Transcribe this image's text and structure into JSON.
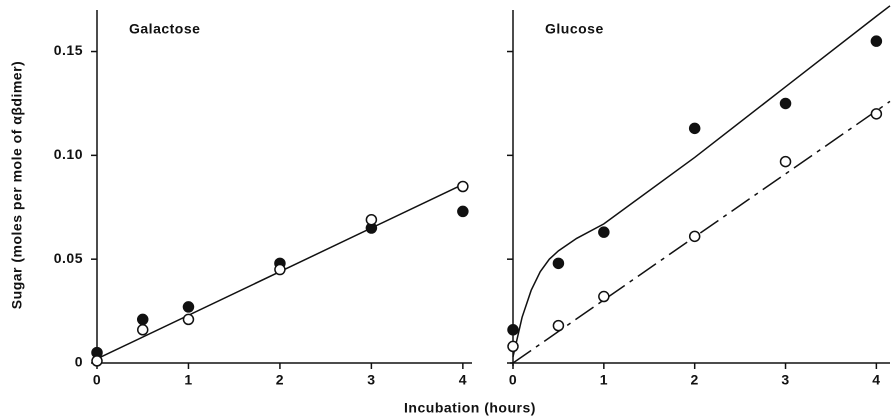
{
  "chart_data": [
    {
      "type": "scatter",
      "title": "Galactose",
      "ylabel": "Sugar (moles per mole of  αβdimer)",
      "xlabel": "Incubation (hours)",
      "xlim": [
        0,
        4.1
      ],
      "ylim": [
        0,
        0.17
      ],
      "xticks": [
        0,
        1,
        2,
        3,
        4
      ],
      "yticks": [
        0,
        0.05,
        {
          "value": 0.1,
          "label": "0.10"
        },
        0.15
      ],
      "ytick_labels": true,
      "series": [
        {
          "marker": "filled",
          "color": "#111111",
          "x": [
            0,
            0.5,
            1,
            2,
            3,
            4
          ],
          "values": [
            0.005,
            0.021,
            0.027,
            0.048,
            0.065,
            0.073
          ]
        },
        {
          "marker": "open",
          "color": "#111111",
          "x": [
            0,
            0.5,
            1,
            2,
            3,
            4
          ],
          "values": [
            0.001,
            0.016,
            0.021,
            0.045,
            0.069,
            0.085
          ]
        }
      ],
      "fits": [
        {
          "style": "solid",
          "x": [
            0,
            4
          ],
          "y": [
            0.002,
            0.086
          ]
        }
      ]
    },
    {
      "type": "scatter",
      "title": "Glucose",
      "xlim": [
        0,
        4.15
      ],
      "ylim": [
        0,
        0.17
      ],
      "xticks": [
        0,
        1,
        2,
        3,
        4
      ],
      "yticks": [
        0,
        0.05,
        0.1,
        0.15
      ],
      "ytick_labels": false,
      "series": [
        {
          "marker": "filled",
          "color": "#111111",
          "x": [
            0,
            0.5,
            1,
            2,
            3,
            4
          ],
          "values": [
            0.016,
            0.048,
            0.063,
            0.113,
            0.125,
            0.155
          ]
        },
        {
          "marker": "open",
          "color": "#111111",
          "x": [
            0,
            0.5,
            1,
            2,
            3,
            4
          ],
          "values": [
            0.008,
            0.018,
            0.032,
            0.061,
            0.097,
            0.12
          ]
        }
      ],
      "fits": [
        {
          "style": "solid",
          "x": [
            0,
            0.1,
            0.2,
            0.3,
            0.4,
            0.5,
            0.7,
            1,
            2,
            3,
            4,
            4.15
          ],
          "y": [
            0.003,
            0.022,
            0.035,
            0.044,
            0.05,
            0.054,
            0.06,
            0.067,
            0.099,
            0.133,
            0.167,
            0.172
          ]
        },
        {
          "style": "dashed",
          "x": [
            0,
            4.15
          ],
          "y": [
            0,
            0.126
          ]
        }
      ]
    }
  ]
}
